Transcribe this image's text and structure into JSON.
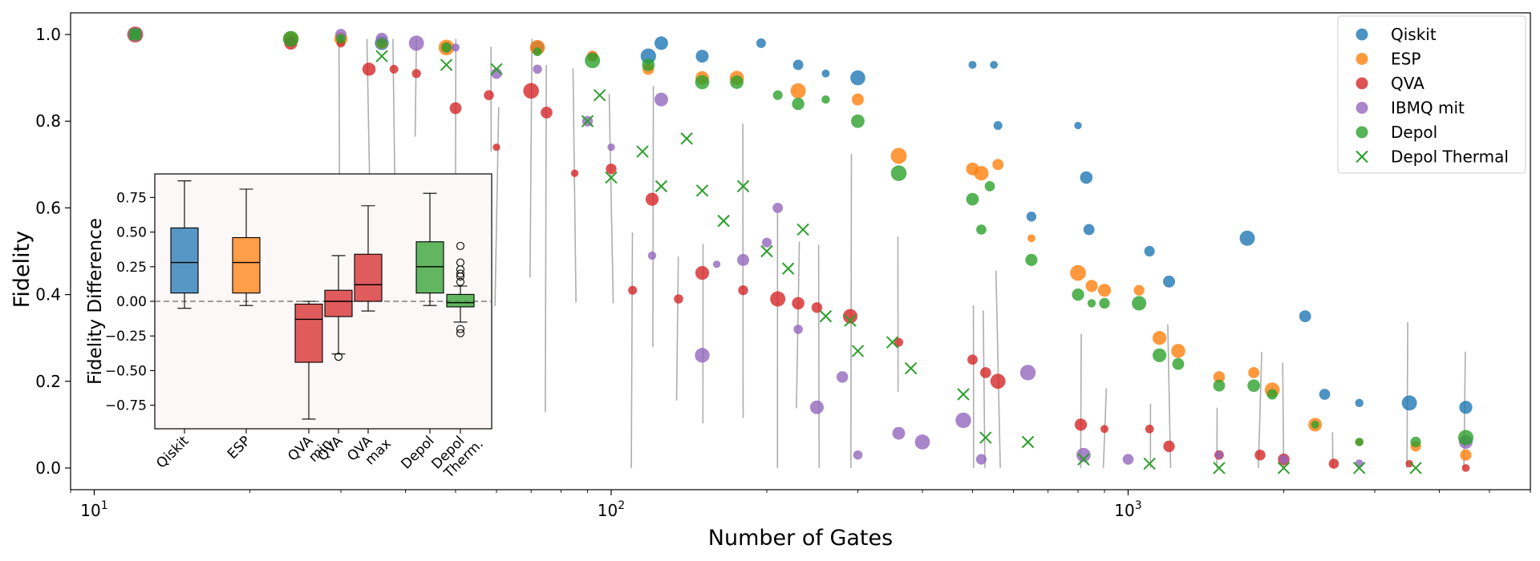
{
  "chart_data": [
    {
      "type": "scatter",
      "title": "",
      "xlabel": "Number of Gates",
      "ylabel": "Fidelity",
      "xscale": "log",
      "xlim": [
        9,
        6000
      ],
      "ylim": [
        -0.05,
        1.05
      ],
      "x_ticks": [
        10,
        100,
        1000
      ],
      "x_tick_labels": [
        "10",
        "10",
        "10"
      ],
      "x_tick_exponents": [
        "1",
        "2",
        "3"
      ],
      "y_ticks": [
        0.0,
        0.2,
        0.4,
        0.6,
        0.8,
        1.0
      ],
      "y_tick_labels": [
        "0.0",
        "0.2",
        "0.4",
        "0.6",
        "0.8",
        "1.0"
      ],
      "legend_position": "top-right",
      "series": [
        {
          "name": "Qiskit",
          "color": "#1f77b4",
          "marker": "circle",
          "points": [
            [
              12,
              1.0
            ],
            [
              24,
              0.99
            ],
            [
              30,
              0.99
            ],
            [
              36,
              0.98
            ],
            [
              48,
              0.97
            ],
            [
              72,
              0.97
            ],
            [
              92,
              0.95
            ],
            [
              118,
              0.95
            ],
            [
              125,
              0.98
            ],
            [
              150,
              0.95
            ],
            [
              195,
              0.98
            ],
            [
              230,
              0.93
            ],
            [
              260,
              0.91
            ],
            [
              300,
              0.9
            ],
            [
              500,
              0.93
            ],
            [
              550,
              0.93
            ],
            [
              560,
              0.79
            ],
            [
              650,
              0.58
            ],
            [
              800,
              0.79
            ],
            [
              830,
              0.67
            ],
            [
              840,
              0.55
            ],
            [
              1100,
              0.5
            ],
            [
              1200,
              0.43
            ],
            [
              1700,
              0.53
            ],
            [
              2200,
              0.35
            ],
            [
              2400,
              0.17
            ],
            [
              2800,
              0.15
            ],
            [
              3500,
              0.15
            ],
            [
              4500,
              0.14
            ]
          ]
        },
        {
          "name": "ESP",
          "color": "#ff7f0e",
          "marker": "circle",
          "points": [
            [
              12,
              1.0
            ],
            [
              24,
              0.99
            ],
            [
              30,
              0.99
            ],
            [
              36,
              0.98
            ],
            [
              48,
              0.97
            ],
            [
              72,
              0.97
            ],
            [
              92,
              0.95
            ],
            [
              118,
              0.92
            ],
            [
              150,
              0.9
            ],
            [
              175,
              0.9
            ],
            [
              230,
              0.87
            ],
            [
              300,
              0.85
            ],
            [
              360,
              0.72
            ],
            [
              500,
              0.69
            ],
            [
              520,
              0.68
            ],
            [
              560,
              0.7
            ],
            [
              650,
              0.53
            ],
            [
              800,
              0.45
            ],
            [
              850,
              0.42
            ],
            [
              900,
              0.41
            ],
            [
              1050,
              0.41
            ],
            [
              1150,
              0.3
            ],
            [
              1250,
              0.27
            ],
            [
              1500,
              0.21
            ],
            [
              1750,
              0.22
            ],
            [
              1900,
              0.18
            ],
            [
              2300,
              0.1
            ],
            [
              2800,
              0.06
            ],
            [
              3600,
              0.05
            ],
            [
              4500,
              0.03
            ]
          ]
        },
        {
          "name": "QVA",
          "color": "#d62728",
          "marker": "circle",
          "points": [
            [
              12,
              1.0
            ],
            [
              24,
              0.98
            ],
            [
              30,
              0.98
            ],
            [
              34,
              0.92
            ],
            [
              38,
              0.92
            ],
            [
              42,
              0.91
            ],
            [
              50,
              0.83
            ],
            [
              58,
              0.86
            ],
            [
              60,
              0.74
            ],
            [
              70,
              0.87
            ],
            [
              75,
              0.82
            ],
            [
              85,
              0.68
            ],
            [
              100,
              0.69
            ],
            [
              110,
              0.41
            ],
            [
              120,
              0.62
            ],
            [
              135,
              0.39
            ],
            [
              150,
              0.45
            ],
            [
              180,
              0.41
            ],
            [
              210,
              0.39
            ],
            [
              230,
              0.38
            ],
            [
              250,
              0.37
            ],
            [
              290,
              0.35
            ],
            [
              360,
              0.29
            ],
            [
              500,
              0.25
            ],
            [
              530,
              0.22
            ],
            [
              560,
              0.2
            ],
            [
              810,
              0.1
            ],
            [
              900,
              0.09
            ],
            [
              1100,
              0.09
            ],
            [
              1200,
              0.05
            ],
            [
              1500,
              0.03
            ],
            [
              1800,
              0.03
            ],
            [
              2000,
              0.02
            ],
            [
              2500,
              0.01
            ],
            [
              3500,
              0.01
            ],
            [
              4500,
              0.0
            ]
          ]
        },
        {
          "name": "IBMQ mit",
          "color": "#9467bd",
          "marker": "circle",
          "points": [
            [
              12,
              1.0
            ],
            [
              30,
              1.0
            ],
            [
              36,
              0.99
            ],
            [
              42,
              0.98
            ],
            [
              50,
              0.97
            ],
            [
              60,
              0.91
            ],
            [
              72,
              0.92
            ],
            [
              90,
              0.8
            ],
            [
              100,
              0.74
            ],
            [
              120,
              0.49
            ],
            [
              125,
              0.85
            ],
            [
              150,
              0.26
            ],
            [
              160,
              0.47
            ],
            [
              180,
              0.48
            ],
            [
              200,
              0.52
            ],
            [
              210,
              0.6
            ],
            [
              230,
              0.32
            ],
            [
              250,
              0.14
            ],
            [
              280,
              0.21
            ],
            [
              300,
              0.03
            ],
            [
              360,
              0.08
            ],
            [
              400,
              0.06
            ],
            [
              480,
              0.11
            ],
            [
              520,
              0.02
            ],
            [
              640,
              0.22
            ],
            [
              820,
              0.03
            ],
            [
              1000,
              0.02
            ],
            [
              1500,
              0.03
            ],
            [
              2000,
              0.02
            ],
            [
              2800,
              0.01
            ],
            [
              4500,
              0.06
            ]
          ]
        },
        {
          "name": "Depol",
          "color": "#2ca02c",
          "marker": "circle",
          "points": [
            [
              12,
              1.0
            ],
            [
              24,
              0.99
            ],
            [
              30,
              0.99
            ],
            [
              36,
              0.98
            ],
            [
              48,
              0.97
            ],
            [
              72,
              0.96
            ],
            [
              92,
              0.94
            ],
            [
              118,
              0.93
            ],
            [
              150,
              0.89
            ],
            [
              175,
              0.89
            ],
            [
              210,
              0.86
            ],
            [
              230,
              0.84
            ],
            [
              260,
              0.85
            ],
            [
              300,
              0.8
            ],
            [
              360,
              0.68
            ],
            [
              500,
              0.62
            ],
            [
              520,
              0.55
            ],
            [
              540,
              0.65
            ],
            [
              650,
              0.48
            ],
            [
              800,
              0.4
            ],
            [
              850,
              0.38
            ],
            [
              900,
              0.38
            ],
            [
              1050,
              0.38
            ],
            [
              1150,
              0.26
            ],
            [
              1250,
              0.24
            ],
            [
              1500,
              0.19
            ],
            [
              1750,
              0.19
            ],
            [
              1900,
              0.17
            ],
            [
              2300,
              0.1
            ],
            [
              2800,
              0.06
            ],
            [
              3600,
              0.06
            ],
            [
              4500,
              0.07
            ]
          ]
        },
        {
          "name": "Depol Thermal",
          "color": "#2ca02c",
          "marker": "x",
          "points": [
            [
              12,
              1.0
            ],
            [
              36,
              0.95
            ],
            [
              48,
              0.93
            ],
            [
              60,
              0.92
            ],
            [
              90,
              0.8
            ],
            [
              95,
              0.86
            ],
            [
              100,
              0.67
            ],
            [
              115,
              0.73
            ],
            [
              125,
              0.65
            ],
            [
              140,
              0.76
            ],
            [
              150,
              0.64
            ],
            [
              165,
              0.57
            ],
            [
              180,
              0.65
            ],
            [
              200,
              0.5
            ],
            [
              220,
              0.46
            ],
            [
              235,
              0.55
            ],
            [
              260,
              0.35
            ],
            [
              290,
              0.34
            ],
            [
              300,
              0.27
            ],
            [
              350,
              0.29
            ],
            [
              380,
              0.23
            ],
            [
              480,
              0.17
            ],
            [
              530,
              0.07
            ],
            [
              640,
              0.06
            ],
            [
              820,
              0.02
            ],
            [
              1100,
              0.01
            ],
            [
              1500,
              0.0
            ],
            [
              2000,
              0.0
            ],
            [
              2800,
              0.0
            ],
            [
              3600,
              0.0
            ]
          ]
        }
      ]
    },
    {
      "type": "box",
      "title": "",
      "xlabel": "",
      "ylabel": "Fidelity Difference",
      "ylim": [
        -0.92,
        0.92
      ],
      "y_ticks": [
        0.75,
        0.5,
        0.25,
        0.0,
        -0.25,
        -0.5,
        -0.75
      ],
      "y_tick_labels": [
        "0.75",
        "0.50",
        "0.25",
        "0.00",
        "−0.25",
        "−0.50",
        "−0.75"
      ],
      "reference_line": 0.0,
      "categories": [
        "Qiskit",
        "ESP",
        "QVA min",
        "QVA",
        "QVA max",
        "Depol",
        "Depol Therm."
      ],
      "boxes": [
        {
          "label_lines": [
            "Qiskit"
          ],
          "color": "#1f77b4",
          "whislo": -0.05,
          "q1": 0.06,
          "med": 0.28,
          "q3": 0.53,
          "whishi": 0.87,
          "fliers": []
        },
        {
          "label_lines": [
            "ESP"
          ],
          "color": "#ff7f0e",
          "whislo": -0.03,
          "q1": 0.06,
          "med": 0.28,
          "q3": 0.46,
          "whishi": 0.81,
          "fliers": []
        },
        {
          "label_lines": [
            "QVA",
            "min"
          ],
          "color": "#d62728",
          "whislo": -0.85,
          "q1": -0.44,
          "med": -0.13,
          "q3": -0.02,
          "whishi": 0.0,
          "fliers": []
        },
        {
          "label_lines": [
            "QVA"
          ],
          "color": "#d62728",
          "whislo": -0.38,
          "q1": -0.11,
          "med": 0.0,
          "q3": 0.08,
          "whishi": 0.33,
          "fliers": [
            -0.4
          ]
        },
        {
          "label_lines": [
            "QVA",
            "max"
          ],
          "color": "#d62728",
          "whislo": -0.07,
          "q1": 0.0,
          "med": 0.12,
          "q3": 0.34,
          "whishi": 0.69,
          "fliers": []
        },
        {
          "label_lines": [
            "Depol"
          ],
          "color": "#2ca02c",
          "whislo": -0.03,
          "q1": 0.06,
          "med": 0.25,
          "q3": 0.43,
          "whishi": 0.78,
          "fliers": []
        },
        {
          "label_lines": [
            "Depol",
            "Therm."
          ],
          "color": "#2ca02c",
          "whislo": -0.15,
          "q1": -0.04,
          "med": -0.01,
          "q3": 0.05,
          "whishi": 0.11,
          "fliers": [
            0.14,
            0.18,
            0.2,
            0.23,
            0.28,
            0.4,
            -0.2,
            -0.23
          ]
        }
      ]
    }
  ]
}
